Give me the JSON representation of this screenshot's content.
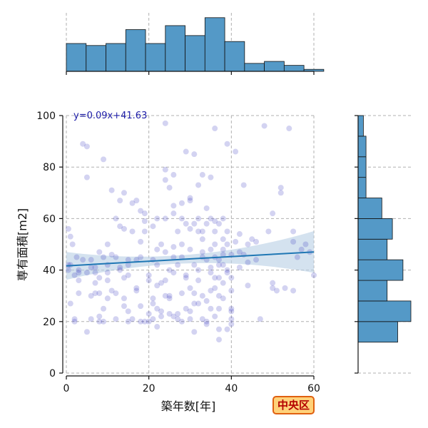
{
  "chart_data": {
    "type": "scatter",
    "xlabel": "築年数[年]",
    "ylabel": "専有面積[m2]",
    "xlim": [
      0,
      60
    ],
    "ylim": [
      0,
      100
    ],
    "x_ticks": [
      0,
      20,
      40,
      60
    ],
    "y_ticks": [
      0,
      20,
      40,
      60,
      80,
      100
    ],
    "grid": true,
    "regression": {
      "label": "y=0.09x+41.63",
      "slope": 0.09,
      "intercept": 41.63,
      "color": "#1f77b4",
      "ci_color": "#b7cfe4"
    },
    "point_color": "#3535c0",
    "marginal_top": {
      "bin_width": 4.8,
      "bins_start": 0,
      "counts": [
        14,
        13,
        14,
        21,
        14,
        23,
        18,
        27,
        15,
        4,
        5,
        3,
        1
      ]
    },
    "marginal_right": {
      "bin_width": 8,
      "bins_start": 12,
      "counts": [
        15,
        20,
        11,
        17,
        11,
        13,
        9,
        3,
        3,
        3,
        2
      ]
    },
    "hist_color": "#5499c7",
    "points": [
      [
        0.5,
        40
      ],
      [
        1,
        42
      ],
      [
        0.5,
        42
      ],
      [
        2,
        38
      ],
      [
        1,
        53
      ],
      [
        1.5,
        50
      ],
      [
        0.5,
        56
      ],
      [
        1,
        27
      ],
      [
        2,
        21
      ],
      [
        2.5,
        45
      ],
      [
        3,
        39
      ],
      [
        3,
        31
      ],
      [
        4,
        44
      ],
      [
        4,
        89
      ],
      [
        5,
        16
      ],
      [
        5,
        76
      ],
      [
        5,
        88
      ],
      [
        5,
        39
      ],
      [
        6,
        41
      ],
      [
        6,
        21
      ],
      [
        7,
        41
      ],
      [
        7,
        39
      ],
      [
        7,
        31
      ],
      [
        7,
        35
      ],
      [
        8,
        31
      ],
      [
        8,
        37
      ],
      [
        8,
        22
      ],
      [
        8,
        20
      ],
      [
        9,
        25
      ],
      [
        9,
        20
      ],
      [
        9,
        83
      ],
      [
        10,
        42
      ],
      [
        10,
        39
      ],
      [
        10,
        36
      ],
      [
        10,
        29
      ],
      [
        11,
        71
      ],
      [
        11,
        32
      ],
      [
        12,
        31
      ],
      [
        12,
        45
      ],
      [
        13,
        41
      ],
      [
        13,
        40
      ],
      [
        13,
        67
      ],
      [
        14,
        37
      ],
      [
        14,
        26
      ],
      [
        15,
        44
      ],
      [
        15,
        42
      ],
      [
        15,
        38
      ],
      [
        15,
        24
      ],
      [
        16,
        66
      ],
      [
        17,
        67
      ],
      [
        17,
        44
      ],
      [
        17,
        32
      ],
      [
        18,
        20
      ],
      [
        18,
        63
      ],
      [
        18,
        51
      ],
      [
        19,
        20
      ],
      [
        19,
        59
      ],
      [
        19,
        55
      ],
      [
        20,
        20
      ],
      [
        20,
        36
      ],
      [
        21,
        29
      ],
      [
        21,
        27
      ],
      [
        21,
        21
      ],
      [
        21,
        44
      ],
      [
        22,
        25
      ],
      [
        22,
        48
      ],
      [
        22,
        18
      ],
      [
        22,
        42
      ],
      [
        23,
        35
      ],
      [
        23,
        22
      ],
      [
        23,
        24
      ],
      [
        24,
        97
      ],
      [
        24,
        79
      ],
      [
        24,
        75
      ],
      [
        24,
        47
      ],
      [
        24,
        30
      ],
      [
        25,
        30
      ],
      [
        25,
        23
      ],
      [
        25,
        72
      ],
      [
        25,
        40
      ],
      [
        26,
        65
      ],
      [
        26,
        62
      ],
      [
        26,
        22
      ],
      [
        26,
        45
      ],
      [
        26,
        77
      ],
      [
        27,
        21
      ],
      [
        27,
        42
      ],
      [
        27,
        23
      ],
      [
        28,
        66
      ],
      [
        28,
        45
      ],
      [
        28,
        20
      ],
      [
        28,
        60
      ],
      [
        29,
        25
      ],
      [
        29,
        86
      ],
      [
        29,
        37
      ],
      [
        29,
        38
      ],
      [
        30,
        67
      ],
      [
        30,
        68
      ],
      [
        30,
        56
      ],
      [
        30,
        24
      ],
      [
        31,
        31
      ],
      [
        31,
        85
      ],
      [
        31,
        58
      ],
      [
        31,
        27
      ],
      [
        31,
        16
      ],
      [
        32,
        73
      ],
      [
        32,
        27
      ],
      [
        32,
        55
      ],
      [
        32,
        60
      ],
      [
        32,
        40
      ],
      [
        33,
        45
      ],
      [
        33,
        52
      ],
      [
        33,
        77
      ],
      [
        33,
        30
      ],
      [
        34,
        64
      ],
      [
        34,
        58
      ],
      [
        34,
        20
      ],
      [
        34,
        19
      ],
      [
        34,
        28
      ],
      [
        35,
        32
      ],
      [
        35,
        48
      ],
      [
        35,
        25
      ],
      [
        35,
        76
      ],
      [
        36,
        50
      ],
      [
        36,
        33
      ],
      [
        36,
        55
      ],
      [
        36,
        95
      ],
      [
        36,
        59
      ],
      [
        37,
        42
      ],
      [
        37,
        37
      ],
      [
        37,
        44
      ],
      [
        37,
        30
      ],
      [
        37,
        13
      ],
      [
        37,
        17
      ],
      [
        38,
        46
      ],
      [
        38,
        48
      ],
      [
        38,
        52
      ],
      [
        38,
        60
      ],
      [
        38,
        29
      ],
      [
        39,
        40
      ],
      [
        39,
        89
      ],
      [
        39,
        50
      ],
      [
        39,
        39
      ],
      [
        40,
        32
      ],
      [
        40,
        24
      ],
      [
        40,
        25
      ],
      [
        40,
        21
      ],
      [
        41,
        86
      ],
      [
        42,
        54
      ],
      [
        42,
        41
      ],
      [
        43,
        73
      ],
      [
        43,
        46
      ],
      [
        44,
        34
      ],
      [
        44,
        50
      ],
      [
        45,
        52
      ],
      [
        46,
        44
      ],
      [
        47,
        21
      ],
      [
        48,
        96
      ],
      [
        49,
        55
      ],
      [
        50,
        62
      ],
      [
        50,
        35
      ],
      [
        50,
        33
      ],
      [
        51,
        32
      ],
      [
        52,
        72
      ],
      [
        52,
        70
      ],
      [
        53,
        33
      ],
      [
        54,
        95
      ],
      [
        55,
        51
      ],
      [
        55,
        32
      ],
      [
        55,
        55
      ],
      [
        56,
        45
      ],
      [
        57,
        48
      ],
      [
        58,
        50
      ],
      [
        59,
        47
      ],
      [
        60,
        38
      ],
      [
        2,
        20
      ],
      [
        3,
        40
      ],
      [
        6,
        44
      ],
      [
        9,
        45
      ],
      [
        11,
        46
      ],
      [
        12,
        60
      ],
      [
        14,
        70
      ],
      [
        16,
        55
      ],
      [
        18,
        45
      ],
      [
        20,
        38
      ],
      [
        22,
        60
      ],
      [
        24,
        60
      ],
      [
        27,
        55
      ],
      [
        30,
        48
      ],
      [
        33,
        47
      ],
      [
        35,
        41
      ],
      [
        38,
        42
      ],
      [
        40,
        46
      ],
      [
        42,
        47
      ],
      [
        44,
        43
      ],
      [
        46,
        51
      ],
      [
        14,
        56
      ],
      [
        19,
        62
      ],
      [
        23,
        50
      ],
      [
        28,
        50
      ],
      [
        29,
        58
      ],
      [
        31,
        42
      ],
      [
        33,
        55
      ],
      [
        35,
        60
      ],
      [
        37,
        58
      ],
      [
        36,
        45
      ],
      [
        34,
        44
      ],
      [
        26,
        49
      ],
      [
        21,
        57
      ],
      [
        17,
        33
      ],
      [
        13,
        57
      ],
      [
        10,
        50
      ],
      [
        8,
        47
      ],
      [
        6,
        30
      ],
      [
        3,
        36
      ],
      [
        15,
        20
      ],
      [
        20,
        23
      ],
      [
        25,
        29
      ],
      [
        30,
        33
      ],
      [
        35,
        39
      ],
      [
        38,
        35
      ],
      [
        40,
        37
      ],
      [
        39,
        55
      ],
      [
        41,
        51
      ],
      [
        36,
        37
      ],
      [
        32,
        36
      ],
      [
        24,
        36
      ],
      [
        22,
        34
      ],
      [
        18,
        26
      ],
      [
        16,
        21
      ],
      [
        12,
        21
      ],
      [
        14,
        29
      ],
      [
        26,
        39
      ],
      [
        28,
        31
      ],
      [
        30,
        21
      ],
      [
        33,
        21
      ],
      [
        36,
        22
      ],
      [
        39,
        17
      ],
      [
        40,
        19
      ],
      [
        37,
        25
      ]
    ]
  },
  "badge": {
    "text": "中央区",
    "bg": "#ffd27a",
    "border": "#e06010",
    "color": "#b40000"
  }
}
